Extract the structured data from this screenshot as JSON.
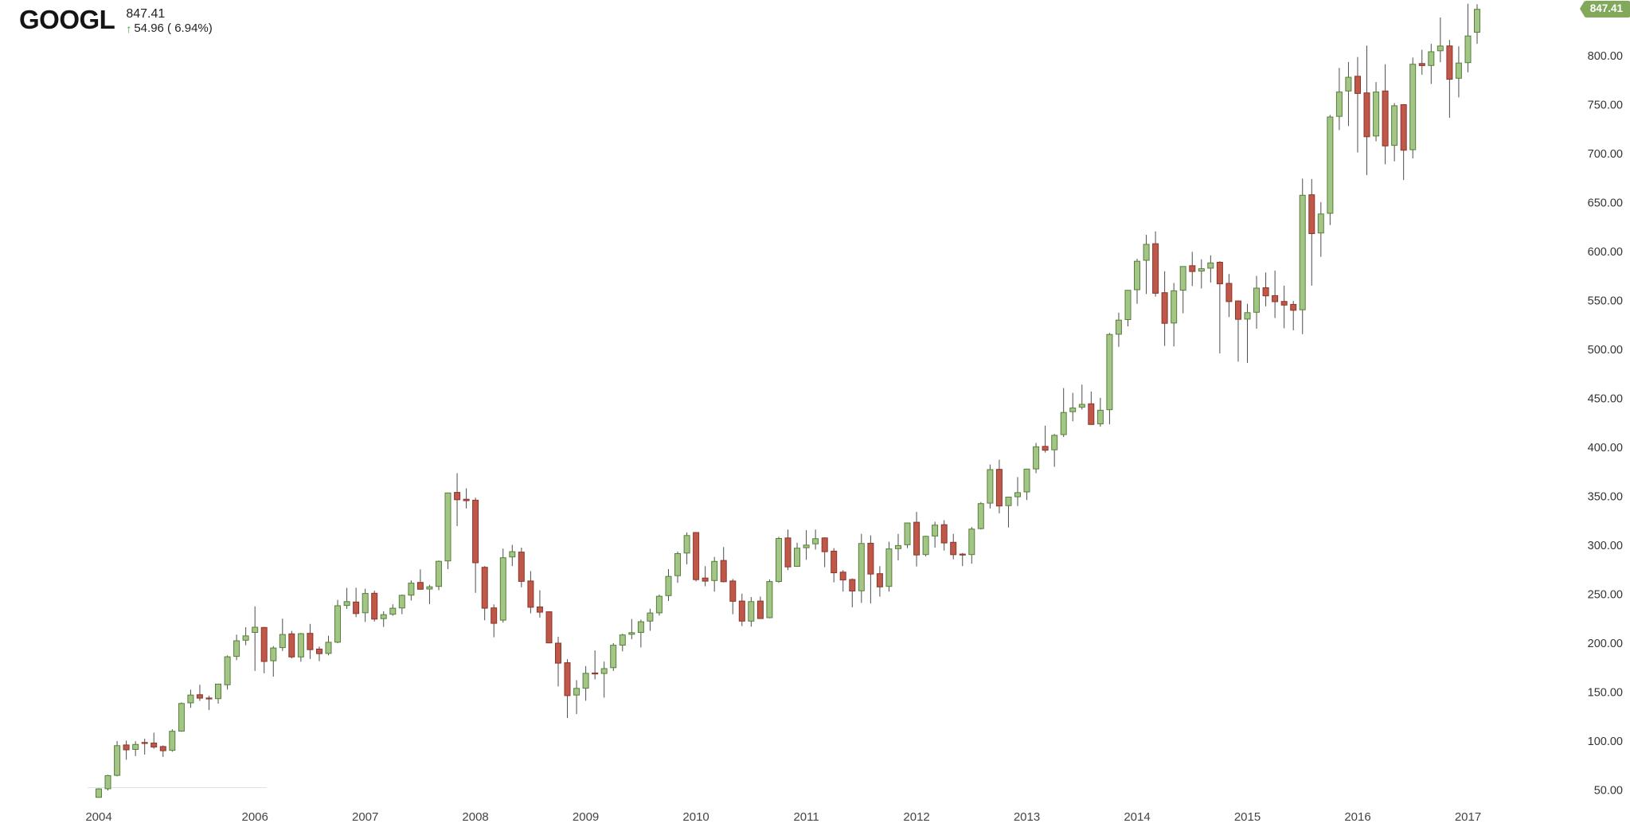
{
  "header": {
    "symbol": "GOOGL",
    "price": "847.41",
    "change_text": "54.96 ( 6.94%)",
    "arrow_icon": "↑",
    "direction": "up"
  },
  "badge": {
    "label": "847.41"
  },
  "colors": {
    "up_fill": "#a3c585",
    "up_border": "#567f3a",
    "down_fill": "#bf5849",
    "down_border": "#8c352b",
    "wick": "#4d4d4d",
    "badge_bg": "#82a859",
    "accent_green": "#3c9e3c",
    "axis_text": "#333333",
    "year_text": "#444444",
    "baseline": "#e2e2e2"
  },
  "chart_data": {
    "type": "candlestick",
    "symbol": "GOOGL",
    "interval": "monthly",
    "title": "GOOGL monthly candlestick chart 2004-2017",
    "grid": "off",
    "legend": "none",
    "x_axis": {
      "visible_year_labels": [
        "2004",
        "2006",
        "2007",
        "2008",
        "2009",
        "2010",
        "2011",
        "2012",
        "2013",
        "2014",
        "2015",
        "2016",
        "2017"
      ]
    },
    "y_axis": {
      "side": "right",
      "range": [
        42,
        860
      ],
      "tick_values": [
        50,
        100,
        150,
        200,
        250,
        300,
        350,
        400,
        450,
        500,
        550,
        600,
        650,
        700,
        750,
        800
      ],
      "tick_labels": [
        "50.00",
        "100.00",
        "150.00",
        "200.00",
        "250.00",
        "300.00",
        "350.00",
        "400.00",
        "450.00",
        "500.00",
        "550.00",
        "600.00",
        "650.00",
        "700.00",
        "750.00",
        "800.00"
      ]
    },
    "last_price": 847.41,
    "columns": [
      "month",
      "open",
      "high",
      "low",
      "close"
    ],
    "candles": [
      [
        "2004-08",
        42.5,
        51.8,
        42.0,
        51.1
      ],
      [
        "2004-09",
        51.3,
        65.5,
        49.5,
        64.7
      ],
      [
        "2004-10",
        65.0,
        100.0,
        64.0,
        95.3
      ],
      [
        "2004-11",
        96.0,
        100.5,
        81.0,
        91.0
      ],
      [
        "2004-12",
        91.5,
        99.8,
        84.6,
        96.5
      ],
      [
        "2005-01",
        98.5,
        102.5,
        86.2,
        97.8
      ],
      [
        "2005-02",
        98.0,
        108.5,
        92.1,
        93.9
      ],
      [
        "2005-03",
        94.4,
        95.5,
        83.8,
        90.2
      ],
      [
        "2005-04",
        90.6,
        112.0,
        89.0,
        110.0
      ],
      [
        "2005-05",
        110.2,
        139.5,
        109.5,
        138.4
      ],
      [
        "2005-06",
        139.0,
        152.5,
        134.0,
        147.0
      ],
      [
        "2005-07",
        147.3,
        157.5,
        141.0,
        143.8
      ],
      [
        "2005-08",
        144.0,
        146.3,
        131.6,
        143.0
      ],
      [
        "2005-09",
        143.3,
        158.5,
        138.2,
        158.2
      ],
      [
        "2005-10",
        157.5,
        187.5,
        152.6,
        186.1
      ],
      [
        "2005-11",
        186.5,
        208.7,
        182.6,
        202.4
      ],
      [
        "2005-12",
        203.0,
        216.3,
        197.9,
        207.4
      ],
      [
        "2006-01",
        211.0,
        237.6,
        171.6,
        216.3
      ],
      [
        "2006-02",
        216.0,
        216.5,
        169.3,
        181.3
      ],
      [
        "2006-03",
        182.0,
        197.0,
        165.8,
        195.0
      ],
      [
        "2006-04",
        195.5,
        225.0,
        192.0,
        208.9
      ],
      [
        "2006-05",
        209.5,
        212.5,
        184.5,
        185.9
      ],
      [
        "2006-06",
        186.0,
        210.5,
        181.0,
        209.7
      ],
      [
        "2006-07",
        210.0,
        219.7,
        183.9,
        193.3
      ],
      [
        "2006-08",
        194.0,
        196.5,
        181.6,
        189.3
      ],
      [
        "2006-09",
        189.5,
        207.5,
        187.6,
        200.9
      ],
      [
        "2006-10",
        201.0,
        244.2,
        200.0,
        238.2
      ],
      [
        "2006-11",
        238.5,
        256.4,
        235.0,
        242.4
      ],
      [
        "2006-12",
        242.0,
        256.6,
        226.6,
        230.2
      ],
      [
        "2007-01",
        231.0,
        255.6,
        221.6,
        250.7
      ],
      [
        "2007-02",
        251.0,
        253.6,
        222.1,
        224.6
      ],
      [
        "2007-03",
        225.0,
        232.6,
        216.6,
        229.1
      ],
      [
        "2007-04",
        229.5,
        239.7,
        228.0,
        235.7
      ],
      [
        "2007-05",
        236.0,
        249.6,
        229.6,
        248.9
      ],
      [
        "2007-06",
        249.0,
        264.1,
        243.6,
        261.3
      ],
      [
        "2007-07",
        262.0,
        275.4,
        254.6,
        255.0
      ],
      [
        "2007-08",
        255.3,
        259.6,
        239.8,
        257.6
      ],
      [
        "2007-09",
        258.0,
        284.4,
        254.1,
        283.6
      ],
      [
        "2007-10",
        284.0,
        353.6,
        275.6,
        353.4
      ],
      [
        "2007-11",
        354.0,
        373.6,
        319.6,
        346.5
      ],
      [
        "2007-12",
        347.0,
        358.1,
        337.6,
        345.5
      ],
      [
        "2008-01",
        346.0,
        348.6,
        251.4,
        282.1
      ],
      [
        "2008-02",
        277.5,
        278.6,
        223.3,
        235.7
      ],
      [
        "2008-03",
        236.0,
        239.6,
        206.0,
        220.2
      ],
      [
        "2008-04",
        223.5,
        296.6,
        221.0,
        287.2
      ],
      [
        "2008-05",
        288.0,
        300.4,
        278.6,
        293.4
      ],
      [
        "2008-06",
        293.0,
        297.6,
        257.1,
        263.1
      ],
      [
        "2008-07",
        263.5,
        273.6,
        230.5,
        236.7
      ],
      [
        "2008-08",
        237.0,
        254.1,
        226.1,
        231.6
      ],
      [
        "2008-09",
        232.0,
        232.6,
        200.3,
        200.2
      ],
      [
        "2008-10",
        200.0,
        206.6,
        155.8,
        179.6
      ],
      [
        "2008-11",
        180.0,
        183.6,
        123.6,
        146.4
      ],
      [
        "2008-12",
        147.0,
        162.1,
        127.6,
        153.8
      ],
      [
        "2009-01",
        154.0,
        176.6,
        141.1,
        169.2
      ],
      [
        "2009-02",
        169.5,
        192.6,
        163.0,
        168.9
      ],
      [
        "2009-03",
        169.0,
        181.1,
        144.4,
        174.0
      ],
      [
        "2009-04",
        175.0,
        200.1,
        171.6,
        197.9
      ],
      [
        "2009-05",
        198.0,
        209.6,
        191.6,
        208.4
      ],
      [
        "2009-06",
        209.0,
        224.6,
        204.1,
        210.7
      ],
      [
        "2009-07",
        211.0,
        224.1,
        195.6,
        221.9
      ],
      [
        "2009-08",
        222.5,
        235.1,
        212.6,
        230.8
      ],
      [
        "2009-09",
        231.0,
        249.6,
        228.1,
        247.9
      ],
      [
        "2009-10",
        248.5,
        275.6,
        243.1,
        268.1
      ],
      [
        "2009-11",
        269.0,
        293.6,
        261.6,
        291.5
      ],
      [
        "2009-12",
        292.0,
        313.1,
        280.6,
        309.9
      ],
      [
        "2010-01",
        313.0,
        313.4,
        263.1,
        264.9
      ],
      [
        "2010-02",
        266.5,
        278.6,
        258.1,
        263.3
      ],
      [
        "2010-03",
        264.0,
        288.1,
        252.6,
        283.5
      ],
      [
        "2010-04",
        284.5,
        298.1,
        262.1,
        262.8
      ],
      [
        "2010-05",
        263.5,
        265.6,
        229.6,
        242.8
      ],
      [
        "2010-06",
        243.0,
        250.6,
        217.4,
        222.5
      ],
      [
        "2010-07",
        222.5,
        247.1,
        216.8,
        242.4
      ],
      [
        "2010-08",
        243.0,
        247.6,
        225.0,
        225.1
      ],
      [
        "2010-09",
        226.0,
        265.1,
        225.4,
        262.9
      ],
      [
        "2010-10",
        263.0,
        308.6,
        261.6,
        306.9
      ],
      [
        "2010-11",
        307.5,
        316.1,
        274.6,
        277.9
      ],
      [
        "2010-12",
        278.5,
        302.6,
        278.0,
        297.0
      ],
      [
        "2011-01",
        297.5,
        315.4,
        285.1,
        300.2
      ],
      [
        "2011-02",
        301.5,
        316.1,
        295.6,
        306.7
      ],
      [
        "2011-03",
        307.5,
        308.1,
        277.6,
        293.4
      ],
      [
        "2011-04",
        294.0,
        297.1,
        262.1,
        271.9
      ],
      [
        "2011-05",
        272.5,
        274.6,
        252.6,
        264.5
      ],
      [
        "2011-06",
        265.0,
        266.1,
        236.6,
        253.2
      ],
      [
        "2011-07",
        253.5,
        311.6,
        241.1,
        301.8
      ],
      [
        "2011-08",
        302.0,
        310.1,
        240.6,
        270.5
      ],
      [
        "2011-09",
        271.0,
        278.6,
        247.6,
        257.5
      ],
      [
        "2011-10",
        258.0,
        303.6,
        252.6,
        296.3
      ],
      [
        "2011-11",
        296.5,
        311.6,
        284.6,
        299.7
      ],
      [
        "2011-12",
        300.5,
        322.9,
        297.1,
        322.8
      ],
      [
        "2012-01",
        323.5,
        334.1,
        278.3,
        290.1
      ],
      [
        "2012-02",
        290.5,
        309.7,
        288.6,
        309.1
      ],
      [
        "2012-03",
        309.5,
        324.1,
        297.6,
        320.6
      ],
      [
        "2012-04",
        321.0,
        325.6,
        294.6,
        302.4
      ],
      [
        "2012-05",
        303.0,
        311.6,
        285.6,
        290.4
      ],
      [
        "2012-06",
        291.0,
        292.1,
        278.6,
        290.0
      ],
      [
        "2012-07",
        290.5,
        318.6,
        281.1,
        316.5
      ],
      [
        "2012-08",
        317.0,
        344.1,
        316.1,
        342.5
      ],
      [
        "2012-09",
        343.0,
        382.4,
        337.6,
        377.2
      ],
      [
        "2012-10",
        377.5,
        387.4,
        332.6,
        340.1
      ],
      [
        "2012-11",
        340.5,
        347.1,
        318.1,
        349.2
      ],
      [
        "2012-12",
        349.5,
        369.6,
        340.1,
        353.7
      ],
      [
        "2013-01",
        354.5,
        378.1,
        346.1,
        377.8
      ],
      [
        "2013-02",
        378.0,
        404.5,
        373.6,
        400.6
      ],
      [
        "2013-03",
        401.0,
        422.1,
        394.6,
        397.1
      ],
      [
        "2013-04",
        397.5,
        413.6,
        380.1,
        412.3
      ],
      [
        "2013-05",
        413.0,
        460.6,
        410.6,
        435.6
      ],
      [
        "2013-06",
        436.5,
        455.6,
        426.6,
        440.2
      ],
      [
        "2013-07",
        441.0,
        464.1,
        438.6,
        443.9
      ],
      [
        "2013-08",
        444.5,
        457.1,
        423.1,
        423.4
      ],
      [
        "2013-09",
        424.0,
        450.6,
        421.1,
        437.9
      ],
      [
        "2013-10",
        438.5,
        516.8,
        423.6,
        515.3
      ],
      [
        "2013-11",
        515.5,
        537.6,
        502.6,
        529.9
      ],
      [
        "2013-12",
        530.5,
        560.6,
        523.6,
        560.4
      ],
      [
        "2014-01",
        561.0,
        592.6,
        546.6,
        590.1
      ],
      [
        "2014-02",
        591.0,
        617.1,
        556.6,
        607.3
      ],
      [
        "2014-03",
        608.0,
        620.6,
        554.1,
        557.4
      ],
      [
        "2014-04",
        558.0,
        579.9,
        503.6,
        526.7
      ],
      [
        "2014-05",
        527.0,
        567.9,
        503.1,
        559.9
      ],
      [
        "2014-06",
        560.5,
        584.6,
        536.9,
        584.7
      ],
      [
        "2014-07",
        585.5,
        599.7,
        564.7,
        579.6
      ],
      [
        "2014-08",
        580.0,
        592.1,
        562.3,
        582.4
      ],
      [
        "2014-09",
        583.0,
        596.1,
        568.3,
        588.4
      ],
      [
        "2014-10",
        589.0,
        590.1,
        495.9,
        567.0
      ],
      [
        "2014-11",
        567.5,
        577.1,
        533.1,
        548.9
      ],
      [
        "2014-12",
        549.5,
        550.1,
        487.6,
        530.7
      ],
      [
        "2015-01",
        531.0,
        546.6,
        486.3,
        537.6
      ],
      [
        "2015-02",
        538.0,
        575.1,
        521.1,
        562.6
      ],
      [
        "2015-03",
        563.0,
        578.6,
        544.1,
        554.7
      ],
      [
        "2015-04",
        555.0,
        580.6,
        532.1,
        548.8
      ],
      [
        "2015-05",
        549.0,
        565.1,
        521.6,
        545.3
      ],
      [
        "2015-06",
        546.0,
        549.6,
        519.6,
        540.0
      ],
      [
        "2015-07",
        540.5,
        674.5,
        515.6,
        657.5
      ],
      [
        "2015-08",
        658.0,
        674.1,
        565.1,
        618.3
      ],
      [
        "2015-09",
        619.0,
        650.6,
        594.6,
        638.4
      ],
      [
        "2015-10",
        639.0,
        739.5,
        627.1,
        737.4
      ],
      [
        "2015-11",
        738.0,
        787.6,
        724.1,
        762.9
      ],
      [
        "2015-12",
        764.0,
        793.6,
        728.1,
        778.0
      ],
      [
        "2016-01",
        779.0,
        798.7,
        701.1,
        761.4
      ],
      [
        "2016-02",
        762.0,
        810.4,
        678.1,
        717.2
      ],
      [
        "2016-03",
        718.0,
        773.1,
        712.6,
        762.9
      ],
      [
        "2016-04",
        764.0,
        791.3,
        689.1,
        707.9
      ],
      [
        "2016-05",
        708.5,
        751.6,
        692.1,
        748.9
      ],
      [
        "2016-06",
        750.0,
        750.6,
        673.1,
        703.5
      ],
      [
        "2016-07",
        704.0,
        798.1,
        695.1,
        791.3
      ],
      [
        "2016-08",
        792.0,
        806.1,
        780.6,
        789.9
      ],
      [
        "2016-09",
        790.0,
        812.1,
        771.1,
        804.1
      ],
      [
        "2016-10",
        805.0,
        839.0,
        793.3,
        809.9
      ],
      [
        "2016-11",
        810.0,
        816.1,
        736.6,
        775.9
      ],
      [
        "2016-12",
        777.0,
        809.6,
        757.4,
        792.5
      ],
      [
        "2017-01",
        793.0,
        853.1,
        783.1,
        820.2
      ],
      [
        "2017-02",
        824.0,
        852.5,
        812.1,
        847.4
      ]
    ]
  }
}
